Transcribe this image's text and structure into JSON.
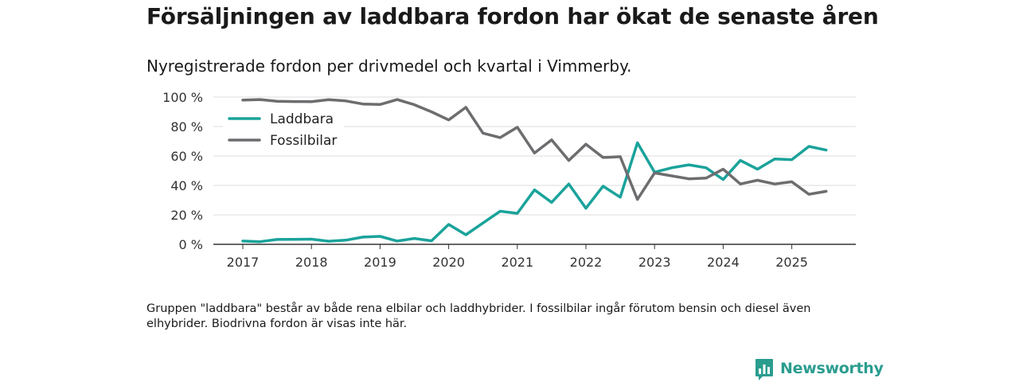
{
  "title": "Försäljningen av laddbara fordon har ökat de senaste åren",
  "subtitle": "Nyregistrerade fordon per drivmedel och kvartal i Vimmerby.",
  "footnote": "Gruppen \"laddbara\" består av både rena elbilar och laddhybrider. I fossilbilar ingår förutom bensin och diesel även elhybrider. Biodrivna fordon är visas inte här.",
  "brand": {
    "name": "Newsworthy",
    "color": "#2a9d8f",
    "logo_icon": "bar-chart-speech-bubble-icon"
  },
  "chart_data": {
    "type": "line",
    "title": "Försäljningen av laddbara fordon har ökat de senaste åren",
    "xlabel": "",
    "ylabel": "",
    "x_start_year": 2017,
    "points_per_year": 4,
    "x_ticks": [
      "2017",
      "2018",
      "2019",
      "2020",
      "2021",
      "2022",
      "2023",
      "2024",
      "2025"
    ],
    "ylim": [
      0,
      100
    ],
    "y_ticks": [
      0,
      20,
      40,
      60,
      80,
      100
    ],
    "y_tick_labels": [
      "0 %",
      "20 %",
      "40 %",
      "60 %",
      "80 %",
      "100 %"
    ],
    "grid": true,
    "legend_position": "top-left",
    "series": [
      {
        "name": "Laddbara",
        "color": "#1aa39b",
        "values": [
          2.2,
          1.8,
          3.3,
          3.4,
          3.5,
          2.1,
          2.8,
          4.9,
          5.4,
          2.2,
          4.0,
          2.4,
          13.5,
          6.5,
          14.5,
          22.5,
          21.0,
          37.0,
          28.5,
          41.0,
          24.5,
          39.5,
          32.0,
          69.0,
          49.0,
          52.0,
          54.0,
          52.0,
          44.0,
          57.0,
          51.0,
          58.0,
          57.5,
          66.5,
          64.0
        ]
      },
      {
        "name": "Fossilbilar",
        "color": "#6d6d70",
        "values": [
          98.0,
          98.3,
          97.2,
          97.0,
          96.9,
          98.2,
          97.4,
          95.3,
          95.0,
          98.3,
          94.8,
          90.0,
          84.5,
          93.0,
          75.5,
          72.5,
          79.5,
          62.0,
          71.0,
          57.0,
          68.0,
          59.0,
          59.5,
          30.5,
          48.5,
          46.5,
          44.5,
          45.0,
          51.0,
          41.0,
          43.5,
          41.0,
          42.5,
          34.0,
          36.0
        ]
      }
    ]
  }
}
